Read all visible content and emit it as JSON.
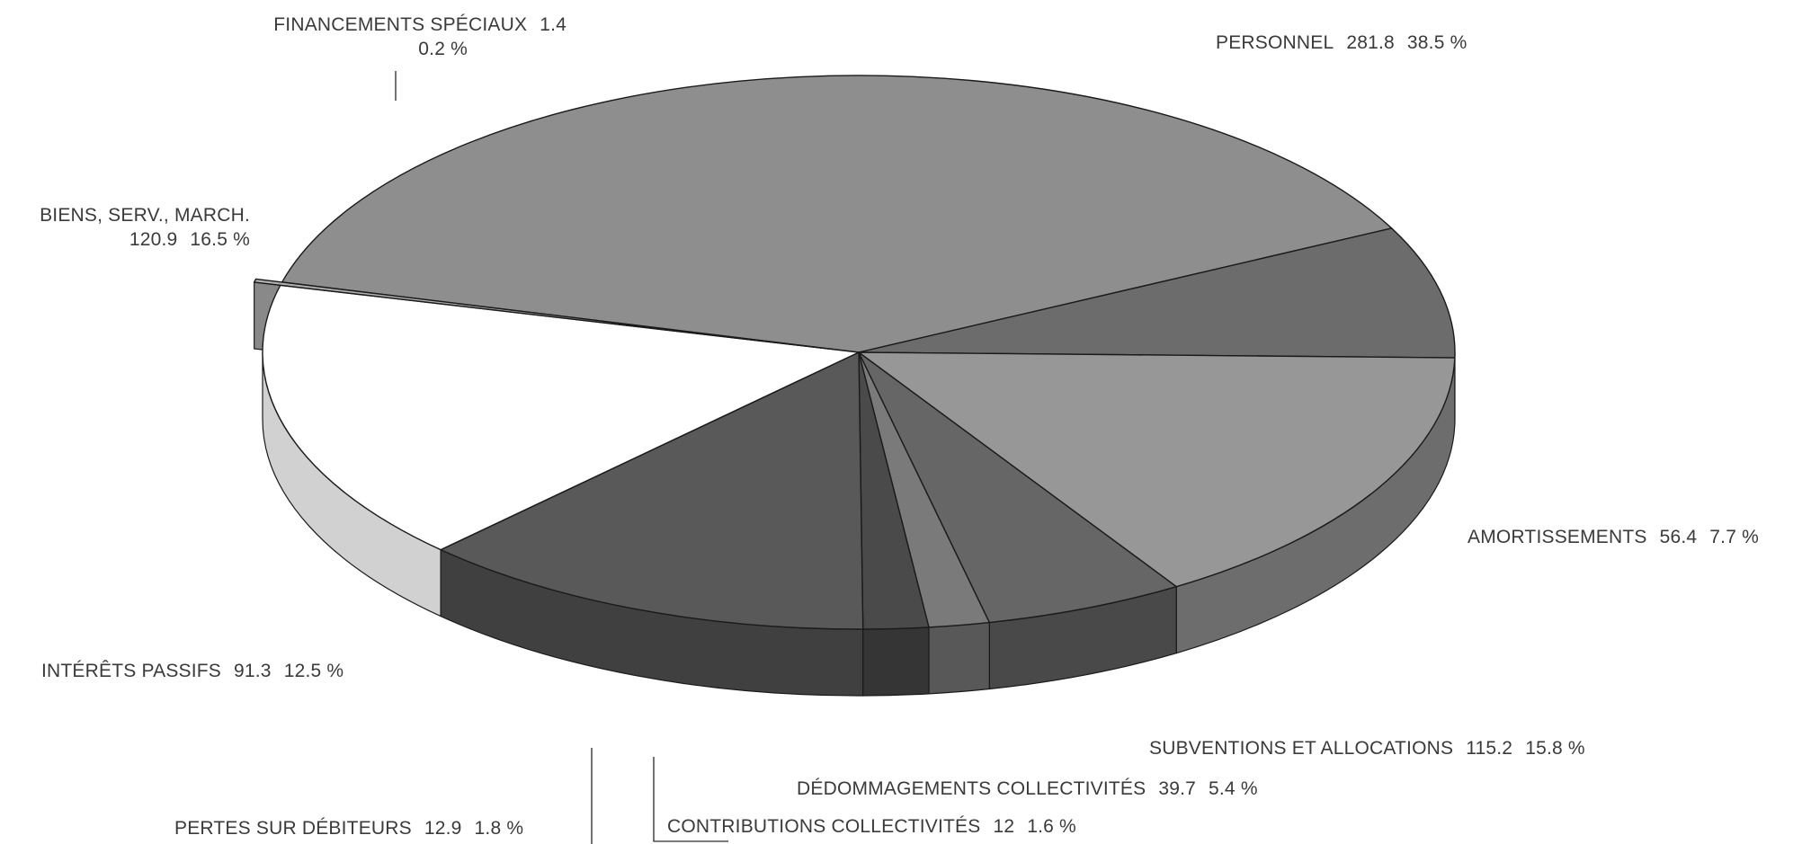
{
  "chart_data": {
    "type": "pie",
    "style": "3d-exploded-slice",
    "slices": [
      {
        "label": "PERSONNEL",
        "value": 281.8,
        "percent": "38.5 %",
        "color": "#8e8e8e"
      },
      {
        "label": "AMORTISSEMENTS",
        "value": 56.4,
        "percent": "7.7 %",
        "color": "#6c6c6c"
      },
      {
        "label": "SUBVENTIONS ET ALLOCATIONS",
        "value": 115.2,
        "percent": "15.8 %",
        "color": "#979797"
      },
      {
        "label": "DÉDOMMAGEMENTS COLLECTIVITÉS",
        "value": 39.7,
        "percent": "5.4 %",
        "color": "#666666"
      },
      {
        "label": "CONTRIBUTIONS COLLECTIVITÉS",
        "value": 12.0,
        "percent": "1.6 %",
        "color": "#7a7a7a"
      },
      {
        "label": "PERTES SUR DÉBITEURS",
        "value": 12.9,
        "percent": "1.8 %",
        "color": "#4a4a4a"
      },
      {
        "label": "INTÉRÊTS PASSIFS",
        "value": 91.3,
        "percent": "12.5 %",
        "color": "#595959"
      },
      {
        "label": "BIENS, SERV., MARCH.",
        "value": 120.9,
        "percent": "16.5 %",
        "color": "#ffffff"
      },
      {
        "label": "FINANCEMENTS SPÉCIAUX",
        "value": 1.4,
        "percent": "0.2 %",
        "color": "#b0b0b0",
        "exploded": true
      }
    ]
  }
}
